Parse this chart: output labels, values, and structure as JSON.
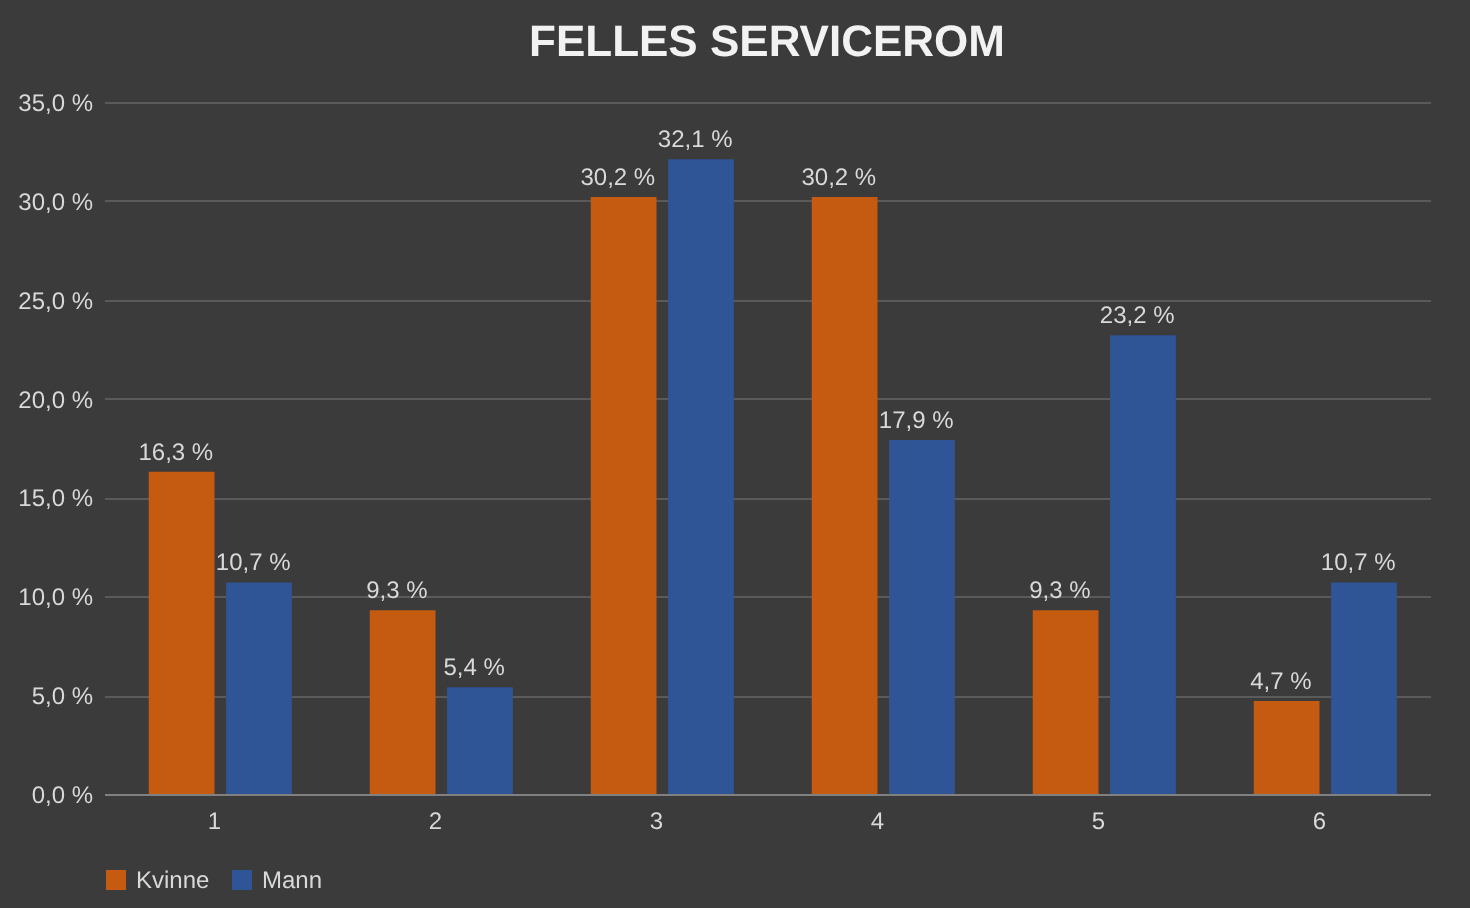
{
  "chart_data": {
    "type": "bar",
    "title": "FELLES SERVICEROM",
    "categories": [
      "1",
      "2",
      "3",
      "4",
      "5",
      "6"
    ],
    "series": [
      {
        "name": "Kvinne",
        "color": "#c55a11",
        "values": [
          16.3,
          9.3,
          30.2,
          30.2,
          9.3,
          4.7
        ],
        "value_labels": [
          "16,3 %",
          "9,3 %",
          "30,2 %",
          "30,2 %",
          "9,3 %",
          "4,7 %"
        ]
      },
      {
        "name": "Mann",
        "color": "#2f5597",
        "values": [
          10.7,
          5.4,
          32.1,
          17.9,
          23.2,
          10.7
        ],
        "value_labels": [
          "10,7 %",
          "5,4 %",
          "32,1 %",
          "17,9 %",
          "23,2 %",
          "10,7 %"
        ]
      }
    ],
    "ylim": [
      0,
      35
    ],
    "yticks": [
      {
        "value": 0,
        "label": "0,0 %"
      },
      {
        "value": 5,
        "label": "5,0 %"
      },
      {
        "value": 10,
        "label": "10,0 %"
      },
      {
        "value": 15,
        "label": "15,0 %"
      },
      {
        "value": 20,
        "label": "20,0 %"
      },
      {
        "value": 25,
        "label": "25,0 %"
      },
      {
        "value": 30,
        "label": "30,0 %"
      },
      {
        "value": 35,
        "label": "35,0 %"
      }
    ],
    "grid": "y",
    "legend": "bottom"
  }
}
